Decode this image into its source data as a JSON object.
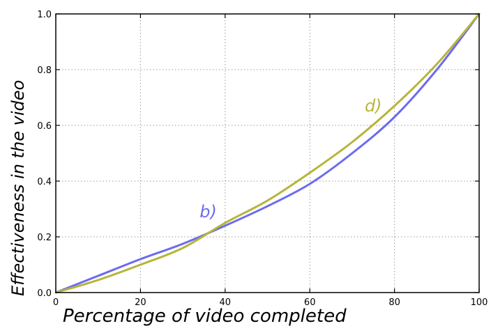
{
  "chart_data": {
    "type": "line",
    "xlabel": "Percentage of video completed",
    "ylabel": "Effectiveness in the video",
    "xlim": [
      0,
      100
    ],
    "ylim": [
      0,
      1.0
    ],
    "xticks": [
      0,
      20,
      40,
      60,
      80,
      100
    ],
    "yticks": [
      0.0,
      0.2,
      0.4,
      0.6,
      0.8,
      1.0
    ],
    "xtick_labels": [
      "0",
      "20",
      "40",
      "60",
      "80",
      "100"
    ],
    "ytick_labels": [
      "0.0",
      "0.2",
      "0.4",
      "0.6",
      "0.8",
      "1.0"
    ],
    "grid": true,
    "series": [
      {
        "name": "b)",
        "color": "#6b6bf0",
        "label_at": [
          36,
          0.27
        ],
        "x": [
          0,
          10,
          20,
          30,
          40,
          50,
          60,
          70,
          80,
          90,
          100
        ],
        "y": [
          0.0,
          0.06,
          0.12,
          0.175,
          0.24,
          0.31,
          0.39,
          0.5,
          0.63,
          0.8,
          1.0
        ]
      },
      {
        "name": "d)",
        "color": "#b5b53a",
        "label_at": [
          75,
          0.65
        ],
        "x": [
          0,
          10,
          20,
          30,
          40,
          50,
          60,
          70,
          80,
          90,
          100
        ],
        "y": [
          0.0,
          0.045,
          0.1,
          0.16,
          0.25,
          0.33,
          0.43,
          0.54,
          0.67,
          0.82,
          1.0
        ]
      }
    ]
  }
}
